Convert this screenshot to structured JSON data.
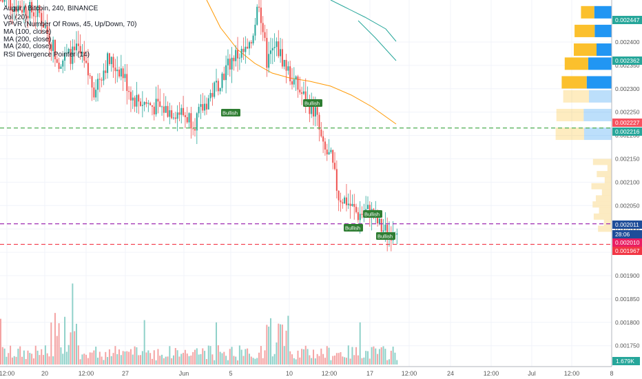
{
  "chart_data": {
    "type": "candlestick",
    "title": "Augur / Bitcoin, 240, BINANCE",
    "indicators": [
      "Vol (20)",
      "VPVR (Number Of Rows, 45, Up/Down, 70)",
      "MA (100, close)",
      "MA (200, close)",
      "MA (240, close)",
      "RSI Divergence Pointer (14)"
    ],
    "y_ticks": [
      "0.002400",
      "0.002350",
      "0.002300",
      "0.002250",
      "0.002200",
      "0.002150",
      "0.002100",
      "0.002050",
      "0.002000",
      "0.001950",
      "0.001900",
      "0.001850",
      "0.001800",
      "0.001750"
    ],
    "x_ticks": [
      "12:00",
      "20",
      "12:00",
      "27",
      "Jun",
      "5",
      "10",
      "12:00",
      "17",
      "12:00",
      "24",
      "12:00",
      "Jul",
      "12:00",
      "8"
    ],
    "price_labels": [
      {
        "text": "0.002447",
        "color": "#26a69a"
      },
      {
        "text": "0.002362",
        "color": "#26a69a"
      },
      {
        "text": "0.002227",
        "color": "#f7525f"
      },
      {
        "text": "0.002216",
        "color": "#26a69a"
      },
      {
        "text": "0.002011",
        "color": "#1e4d99"
      },
      {
        "text": "28:06",
        "color": "#1e4d99"
      },
      {
        "text": "0.002010",
        "color": "#e91e63"
      },
      {
        "text": "0.001967",
        "color": "#f23645"
      }
    ],
    "volume_label": "1.679K",
    "h_lines": [
      {
        "price": 0.002216,
        "color": "#4caf50"
      },
      {
        "price": 0.002011,
        "color": "#9c27b0"
      },
      {
        "price": 0.001967,
        "color": "#f23645"
      }
    ],
    "signals": [
      "Bullish",
      "Bullish",
      "Bullish",
      "Bullish",
      "Bullish"
    ],
    "colors": {
      "up": "#26a69a",
      "down": "#ef5350",
      "ma100": "#ff9800",
      "ma200": "#26a69a",
      "vpvr_up": "#2196f3",
      "vpvr_down": "#fbc02d"
    }
  }
}
